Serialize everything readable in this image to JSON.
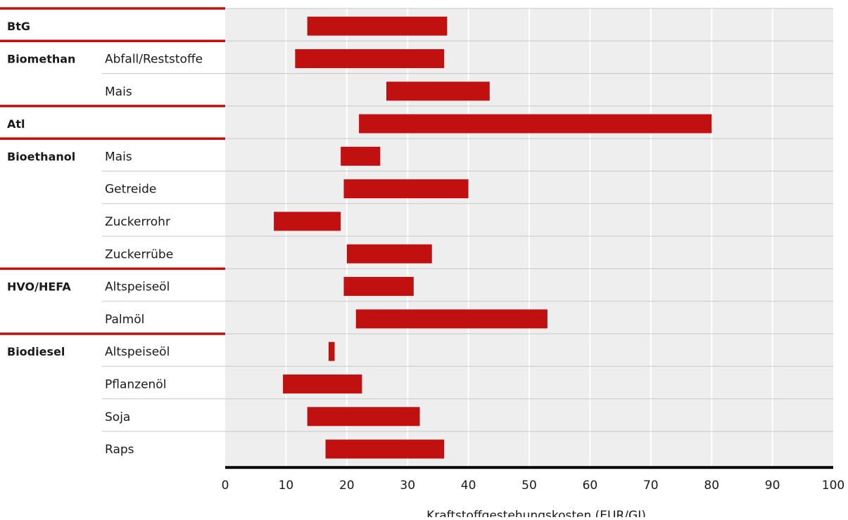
{
  "colors": {
    "bar": "#c01010",
    "group_rule": "#c01010",
    "plot_background": "#efeeee",
    "gridline": "#ffffff",
    "row_divider": "#c8c8c8",
    "axis_line": "#000000"
  },
  "chart_data": {
    "type": "bar",
    "orientation": "horizontal",
    "bar_kind": "range",
    "xlabel": "Kraftstoffgestehungskosten (EUR/GJ)",
    "xlim": [
      0,
      100
    ],
    "xticks": [
      "0",
      "10",
      "20",
      "30",
      "40",
      "50",
      "60",
      "70",
      "80",
      "90",
      "100"
    ],
    "grid": true,
    "rows": [
      {
        "group": "BtG",
        "label": "",
        "min": 13.5,
        "max": 36.5
      },
      {
        "group": "Biomethan",
        "label": "Abfall/Reststoffe",
        "min": 11.5,
        "max": 36
      },
      {
        "group": "",
        "label": "Mais",
        "min": 26.5,
        "max": 43.5
      },
      {
        "group": "Atl",
        "label": "",
        "min": 22,
        "max": 80
      },
      {
        "group": "Bioethanol",
        "label": "Mais",
        "min": 19,
        "max": 25.5
      },
      {
        "group": "",
        "label": "Getreide",
        "min": 19.5,
        "max": 40
      },
      {
        "group": "",
        "label": "Zuckerrohr",
        "min": 8,
        "max": 19
      },
      {
        "group": "",
        "label": "Zuckerrübe",
        "min": 20,
        "max": 34
      },
      {
        "group": "HVO/HEFA",
        "label": "Altspeiseöl",
        "min": 19.5,
        "max": 31
      },
      {
        "group": "",
        "label": "Palmöl",
        "min": 21.5,
        "max": 53
      },
      {
        "group": "Biodiesel",
        "label": "Altspeiseöl",
        "min": 17,
        "max": 18
      },
      {
        "group": "",
        "label": "Pflanzenöl",
        "min": 9.5,
        "max": 22.5
      },
      {
        "group": "",
        "label": "Soja",
        "min": 13.5,
        "max": 32
      },
      {
        "group": "",
        "label": "Raps",
        "min": 16.5,
        "max": 36
      }
    ]
  }
}
